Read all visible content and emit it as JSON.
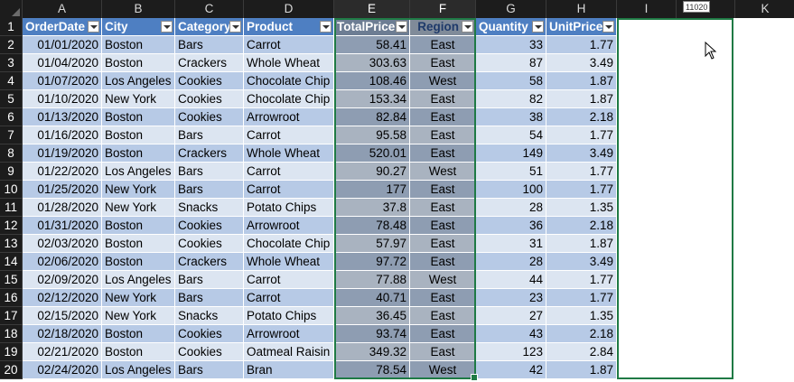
{
  "columns": [
    "A",
    "B",
    "C",
    "D",
    "E",
    "F",
    "G",
    "H",
    "I",
    "J",
    "K"
  ],
  "name_box": "11020",
  "header_row": {
    "row_num": "1",
    "cells": [
      "OrderDate",
      "City",
      "Category",
      "Product",
      "TotalPrice",
      "Region",
      "Quantity",
      "UnitPrice"
    ]
  },
  "rows": [
    {
      "n": "2",
      "date": "01/01/2020",
      "city": "Boston",
      "category": "Bars",
      "product": "Carrot",
      "total": "58.41",
      "region": "East",
      "qty": "33",
      "unit": "1.77"
    },
    {
      "n": "3",
      "date": "01/04/2020",
      "city": "Boston",
      "category": "Crackers",
      "product": "Whole Wheat",
      "total": "303.63",
      "region": "East",
      "qty": "87",
      "unit": "3.49"
    },
    {
      "n": "4",
      "date": "01/07/2020",
      "city": "Los Angeles",
      "category": "Cookies",
      "product": "Chocolate Chip",
      "total": "108.46",
      "region": "West",
      "qty": "58",
      "unit": "1.87"
    },
    {
      "n": "5",
      "date": "01/10/2020",
      "city": "New York",
      "category": "Cookies",
      "product": "Chocolate Chip",
      "total": "153.34",
      "region": "East",
      "qty": "82",
      "unit": "1.87"
    },
    {
      "n": "6",
      "date": "01/13/2020",
      "city": "Boston",
      "category": "Cookies",
      "product": "Arrowroot",
      "total": "82.84",
      "region": "East",
      "qty": "38",
      "unit": "2.18"
    },
    {
      "n": "7",
      "date": "01/16/2020",
      "city": "Boston",
      "category": "Bars",
      "product": "Carrot",
      "total": "95.58",
      "region": "East",
      "qty": "54",
      "unit": "1.77"
    },
    {
      "n": "8",
      "date": "01/19/2020",
      "city": "Boston",
      "category": "Crackers",
      "product": "Whole Wheat",
      "total": "520.01",
      "region": "East",
      "qty": "149",
      "unit": "3.49"
    },
    {
      "n": "9",
      "date": "01/22/2020",
      "city": "Los Angeles",
      "category": "Bars",
      "product": "Carrot",
      "total": "90.27",
      "region": "West",
      "qty": "51",
      "unit": "1.77"
    },
    {
      "n": "10",
      "date": "01/25/2020",
      "city": "New York",
      "category": "Bars",
      "product": "Carrot",
      "total": "177",
      "region": "East",
      "qty": "100",
      "unit": "1.77"
    },
    {
      "n": "11",
      "date": "01/28/2020",
      "city": "New York",
      "category": "Snacks",
      "product": "Potato Chips",
      "total": "37.8",
      "region": "East",
      "qty": "28",
      "unit": "1.35"
    },
    {
      "n": "12",
      "date": "01/31/2020",
      "city": "Boston",
      "category": "Cookies",
      "product": "Arrowroot",
      "total": "78.48",
      "region": "East",
      "qty": "36",
      "unit": "2.18"
    },
    {
      "n": "13",
      "date": "02/03/2020",
      "city": "Boston",
      "category": "Cookies",
      "product": "Chocolate Chip",
      "total": "57.97",
      "region": "East",
      "qty": "31",
      "unit": "1.87"
    },
    {
      "n": "14",
      "date": "02/06/2020",
      "city": "Boston",
      "category": "Crackers",
      "product": "Whole Wheat",
      "total": "97.72",
      "region": "East",
      "qty": "28",
      "unit": "3.49"
    },
    {
      "n": "15",
      "date": "02/09/2020",
      "city": "Los Angeles",
      "category": "Bars",
      "product": "Carrot",
      "total": "77.88",
      "region": "West",
      "qty": "44",
      "unit": "1.77"
    },
    {
      "n": "16",
      "date": "02/12/2020",
      "city": "New York",
      "category": "Bars",
      "product": "Carrot",
      "total": "40.71",
      "region": "East",
      "qty": "23",
      "unit": "1.77"
    },
    {
      "n": "17",
      "date": "02/15/2020",
      "city": "New York",
      "category": "Snacks",
      "product": "Potato Chips",
      "total": "36.45",
      "region": "East",
      "qty": "27",
      "unit": "1.35"
    },
    {
      "n": "18",
      "date": "02/18/2020",
      "city": "Boston",
      "category": "Cookies",
      "product": "Arrowroot",
      "total": "93.74",
      "region": "East",
      "qty": "43",
      "unit": "2.18"
    },
    {
      "n": "19",
      "date": "02/21/2020",
      "city": "Boston",
      "category": "Cookies",
      "product": "Oatmeal Raisin",
      "total": "349.32",
      "region": "East",
      "qty": "123",
      "unit": "2.84"
    },
    {
      "n": "20",
      "date": "02/24/2020",
      "city": "Los Angeles",
      "category": "Bars",
      "product": "Bran",
      "total": "78.54",
      "region": "West",
      "qty": "42",
      "unit": "1.87"
    }
  ]
}
